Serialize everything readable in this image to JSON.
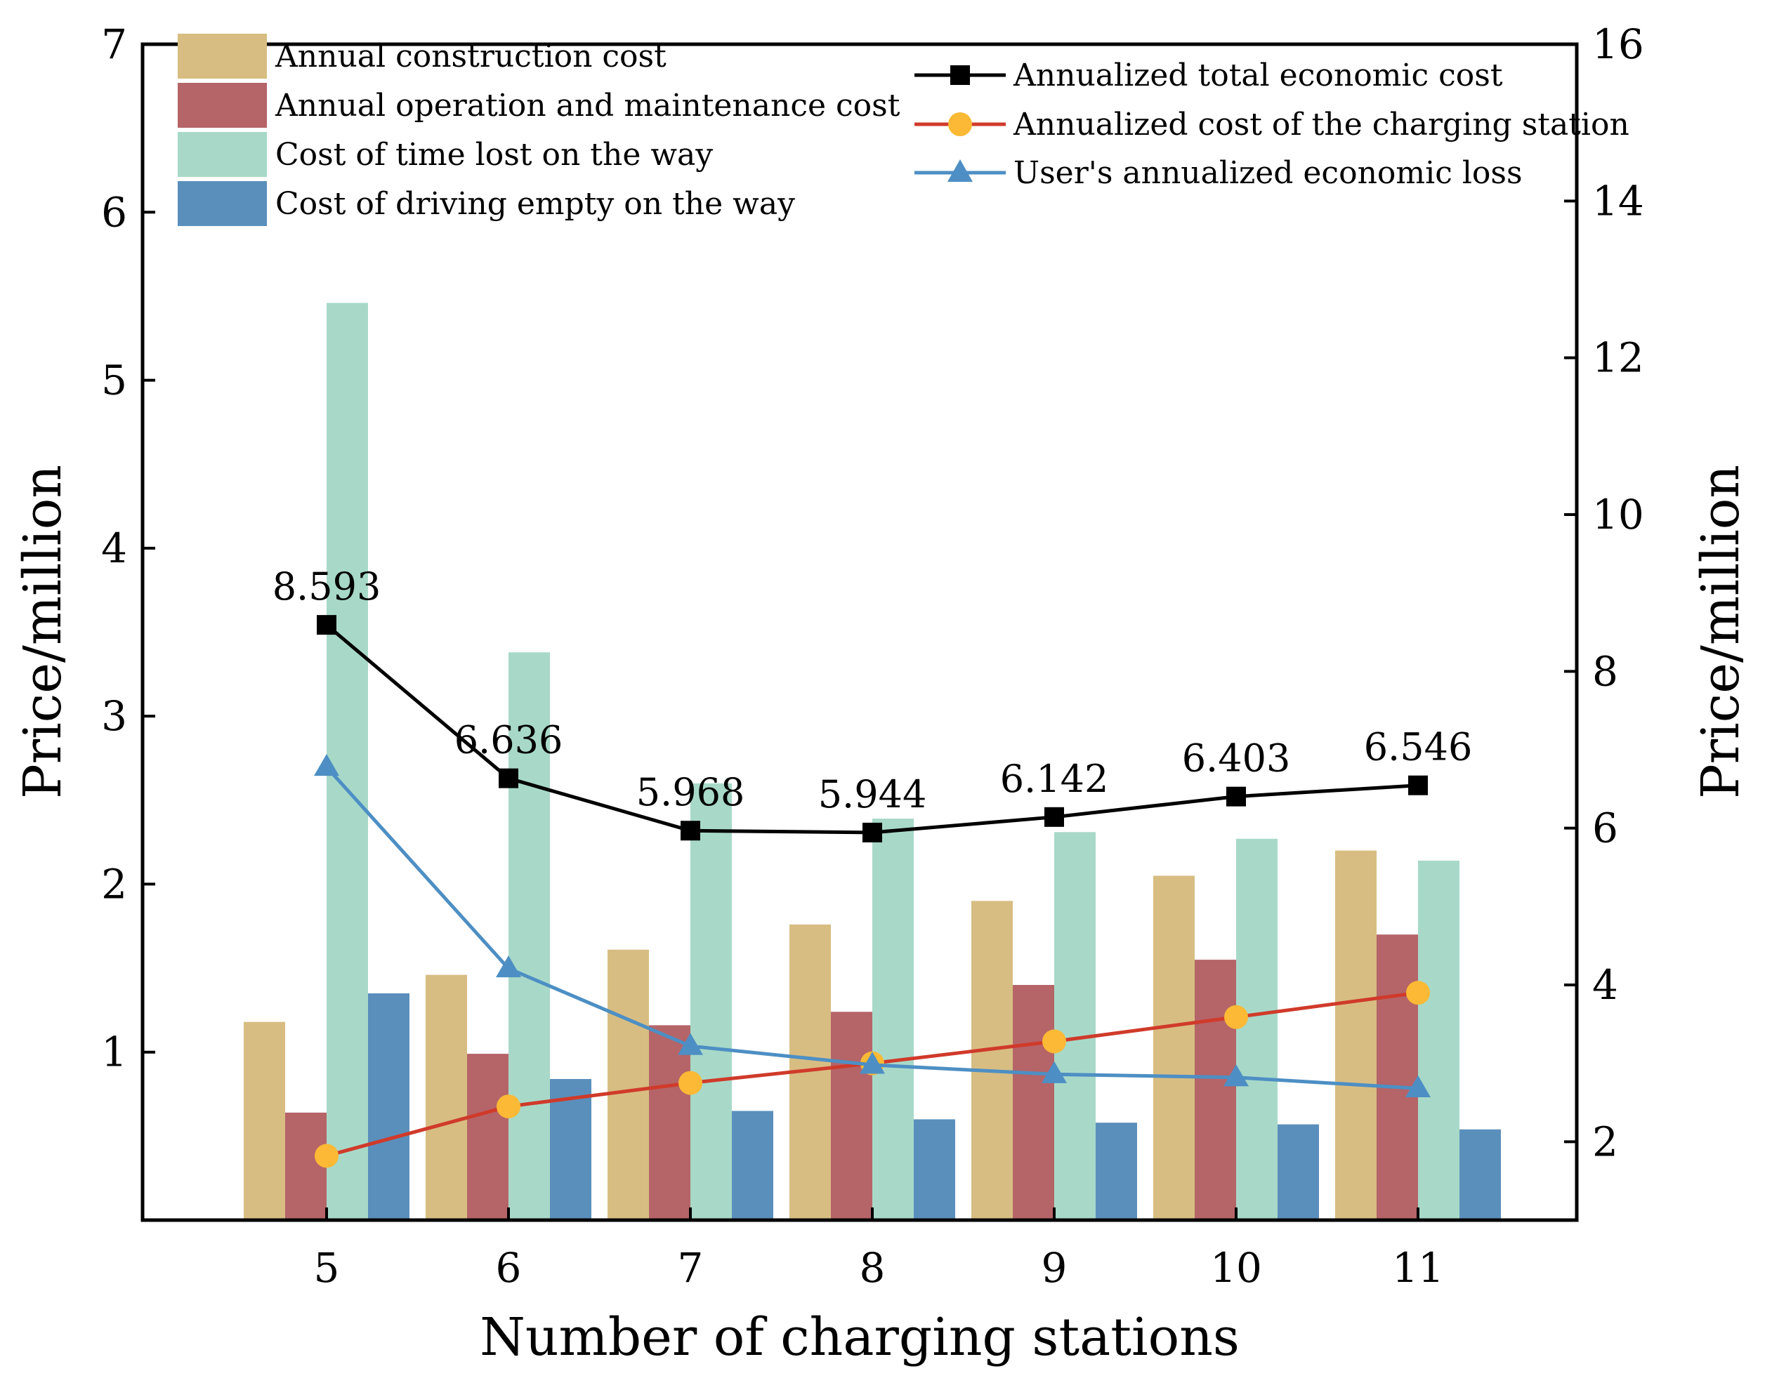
{
  "chart_data": {
    "type": "bar",
    "title": "",
    "xlabel": "Number of charging stations",
    "ylabel": "Price/million",
    "y2label": "Price/million",
    "categories": [
      "5",
      "6",
      "7",
      "8",
      "9",
      "10",
      "11"
    ],
    "ylim": [
      0,
      7
    ],
    "y2lim": [
      1,
      16
    ],
    "yticks": [
      "1",
      "2",
      "3",
      "4",
      "5",
      "6",
      "7"
    ],
    "y2ticks": [
      "2",
      "4",
      "6",
      "8",
      "10",
      "12",
      "14",
      "16"
    ],
    "bar_series": [
      {
        "name": "Annual construction cost",
        "color": "#d8bd82",
        "values": [
          1.18,
          1.46,
          1.61,
          1.76,
          1.9,
          2.05,
          2.2
        ]
      },
      {
        "name": "Annual operation and maintenance cost",
        "color": "#b56468",
        "values": [
          0.64,
          0.99,
          1.16,
          1.24,
          1.4,
          1.55,
          1.7
        ]
      },
      {
        "name": "Cost of time lost on the way",
        "color": "#a8d9c8",
        "values": [
          5.46,
          3.38,
          2.6,
          2.39,
          2.31,
          2.27,
          2.14
        ]
      },
      {
        "name": "Cost of driving empty on the way",
        "color": "#5a8fbc",
        "values": [
          1.35,
          0.84,
          0.65,
          0.6,
          0.58,
          0.57,
          0.54
        ]
      }
    ],
    "line_series": [
      {
        "name": "Annualized total economic cost",
        "color": "#000000",
        "marker": "square",
        "axis": "right",
        "values": [
          8.593,
          6.636,
          5.968,
          5.944,
          6.142,
          6.403,
          6.546
        ]
      },
      {
        "name": "Annualized cost of the charging station",
        "color": "#d03a2a",
        "marker_color": "#fbb935",
        "marker": "circle",
        "axis": "right",
        "values": [
          1.82,
          2.45,
          2.75,
          3.0,
          3.28,
          3.59,
          3.9
        ]
      },
      {
        "name": "User's annualized economic loss",
        "color": "#4d8fc4",
        "marker": "triangle",
        "axis": "right",
        "values": [
          6.78,
          4.21,
          3.22,
          2.98,
          2.86,
          2.82,
          2.68
        ]
      }
    ],
    "data_labels": [
      "8.593",
      "6.636",
      "5.968",
      "5.944",
      "6.142",
      "6.403",
      "6.546"
    ]
  }
}
